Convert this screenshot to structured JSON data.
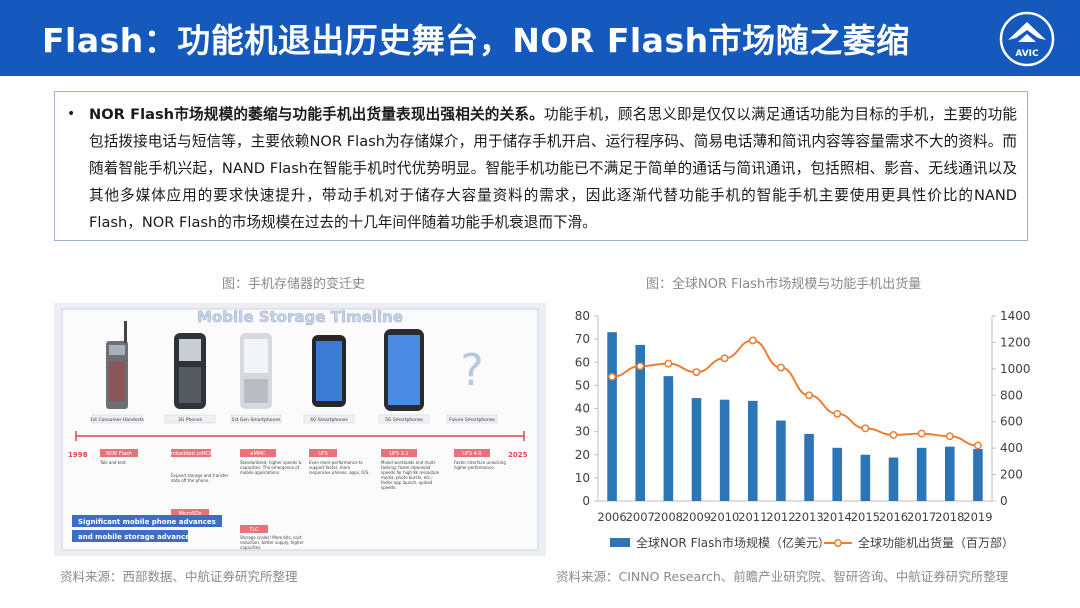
{
  "header": {
    "title": "Flash：功能机退出历史舞台，NOR Flash市场随之萎缩",
    "logo_text": "AVIC"
  },
  "summary": {
    "bullet": "•",
    "bold": "NOR Flash市场规模的萎缩与功能手机出货量表现出强相关的关系。",
    "body": "功能手机，顾名思义即是仅仅以满足通话功能为目标的手机，主要的功能包括拨接电话与短信等，主要依赖NOR Flash为存储媒介，用于储存手机开启、运行程序码、简易电话薄和简讯内容等容量需求不大的资料。而随着智能手机兴起，NAND Flash在智能手机时代优势明显。智能手机功能已不满足于简单的通话与简讯通讯，包括照相、影音、无线通讯以及其他多媒体应用的要求快速提升，带动手机对于储存大容量资料的需求，因此逐渐代替功能手机的智能手机主要使用更具性价比的NAND Flash，NOR Flash的市场规模在过去的十几年间伴随着功能手机衰退而下滑。"
  },
  "left_figure": {
    "caption": "图：手机存储器的变迁史",
    "source": "资料来源：西部数据、中航证券研究所整理",
    "timeline": {
      "title": "Mobile Storage Timeline",
      "year_start": "1998",
      "year_end": "2025",
      "phases": [
        {
          "label": "1st Consumer Handsets",
          "tag": "NOR Flash",
          "desc": "Talk and text."
        },
        {
          "label": "3G Phones",
          "tag": "Embedded (eMCP)",
          "desc": "Expand storage and transfer data off the phone."
        },
        {
          "label": "1st Gen Smartphones",
          "tag": "eMMC",
          "desc": "Standardized, higher speeds & capacities. The emergence of mobile applications."
        },
        {
          "label": "4G Smartphones",
          "tag": "UFS",
          "desc": "Even more performance to support faster, more responsive phones, apps, O/S."
        },
        {
          "label": "5G Smartphones",
          "tag": "UFS 3.1",
          "desc": "Mixed workloads and multi-tasking; faster download speeds for high 8k resolution media, photo bursts, etc.; faster app launch, upload speeds."
        },
        {
          "label": "Future Smartphones",
          "tag": "UFS 4.0",
          "desc": "Faster interface unlocking higher performance."
        }
      ],
      "extra_tags": [
        {
          "tag": "MicroSDs",
          "desc": ""
        },
        {
          "tag": "TLC",
          "desc": "Storage scales! More bits, cost reduction, better supply, higher capacities."
        }
      ],
      "banner": [
        "Significant mobile phone advances",
        "and mobile storage advances:"
      ],
      "future_mark": "?"
    }
  },
  "right_figure": {
    "caption": "图：全球NOR Flash市场规模与功能手机出货量",
    "source": "资料来源：CINNO Research、前瞻产业研究院、智研咨询、中航证券研究所整理"
  },
  "chart_data": {
    "type": "bar",
    "categories": [
      "2006",
      "2007",
      "2008",
      "2009",
      "2010",
      "2011",
      "2012",
      "2013",
      "2014",
      "2015",
      "2016",
      "2017",
      "2018",
      "2019"
    ],
    "series": [
      {
        "name": "全球NOR Flash市场规模（亿美元）",
        "type": "bar",
        "axis": "left",
        "values": [
          73,
          67.5,
          54,
          44.5,
          43.8,
          43.3,
          34.8,
          29,
          23,
          20,
          18.8,
          23,
          23.5,
          22.5
        ]
      },
      {
        "name": "全球功能机出货量（百万部）",
        "type": "line",
        "axis": "right",
        "values": [
          940,
          1020,
          1040,
          975,
          1080,
          1215,
          1010,
          800,
          660,
          550,
          500,
          510,
          490,
          420
        ]
      }
    ],
    "ylim_left": [
      0,
      80
    ],
    "yticks_left": [
      "0",
      "10",
      "20",
      "30",
      "40",
      "50",
      "60",
      "70",
      "80"
    ],
    "ylim_right": [
      0,
      1400
    ],
    "yticks_right": [
      "0",
      "200",
      "400",
      "600",
      "800",
      "1000",
      "1200",
      "1400"
    ],
    "legend_position": "bottom",
    "colors": {
      "bar": "#2e75b6",
      "line": "#ed7d31"
    }
  }
}
